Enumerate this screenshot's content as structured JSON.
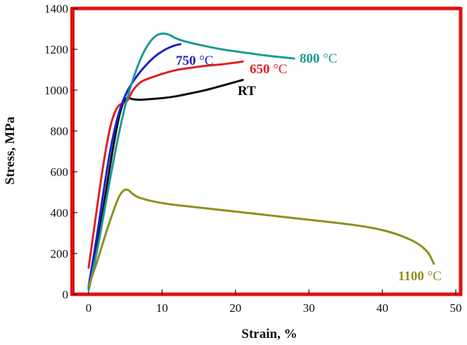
{
  "chart_data": {
    "type": "line",
    "xlabel": "Strain, %",
    "ylabel": "Stress, MPa",
    "xlim": [
      0,
      50
    ],
    "ylim": [
      0,
      1400
    ],
    "xticks": [
      0,
      10,
      20,
      30,
      40,
      50
    ],
    "yticks": [
      0,
      200,
      400,
      600,
      800,
      1000,
      1200,
      1400
    ],
    "grid": false,
    "legend": "inline labels",
    "series": [
      {
        "name": "RT",
        "label_parts": [
          "RT"
        ],
        "color": "#0a0a0a",
        "x": [
          0,
          1,
          2,
          3,
          4,
          4.5,
          5,
          5.5,
          6,
          7,
          8,
          10,
          12,
          14,
          16,
          18,
          20,
          21
        ],
        "y": [
          30,
          200,
          420,
          650,
          850,
          920,
          960,
          962,
          955,
          952,
          955,
          960,
          970,
          985,
          1000,
          1020,
          1040,
          1050
        ]
      },
      {
        "name": "650 °C",
        "label_parts": [
          "650 ",
          "°C"
        ],
        "color": "#e02020",
        "x": [
          0,
          1,
          2,
          3,
          4,
          5,
          5.5,
          6,
          7,
          8,
          10,
          12,
          14,
          16,
          18,
          20,
          21
        ],
        "y": [
          130,
          390,
          640,
          840,
          930,
          935,
          960,
          1000,
          1040,
          1055,
          1080,
          1100,
          1110,
          1120,
          1125,
          1135,
          1140
        ]
      },
      {
        "name": "750 °C",
        "label_parts": [
          "750 ",
          "°C"
        ],
        "color": "#1f1fcc",
        "x": [
          0,
          1,
          2,
          3,
          4,
          5,
          6,
          7,
          8,
          9,
          10,
          11,
          12,
          12.5
        ],
        "y": [
          40,
          250,
          500,
          720,
          880,
          980,
          1040,
          1090,
          1130,
          1165,
          1190,
          1210,
          1222,
          1225
        ]
      },
      {
        "name": "800 °C",
        "label_parts": [
          "800 ",
          "°C"
        ],
        "color": "#1a9a96",
        "x": [
          0,
          1,
          2,
          3,
          4,
          5,
          6,
          7,
          8,
          9,
          10,
          11,
          12,
          14,
          16,
          18,
          20,
          22,
          24,
          26,
          28
        ],
        "y": [
          20,
          180,
          380,
          580,
          770,
          930,
          1050,
          1150,
          1220,
          1265,
          1280,
          1272,
          1250,
          1230,
          1215,
          1200,
          1190,
          1180,
          1170,
          1162,
          1155
        ]
      },
      {
        "name": "1100 °C",
        "label_parts": [
          "1100 ",
          "°C"
        ],
        "color": "#8f8f1e",
        "x": [
          0,
          1,
          2,
          3,
          4,
          4.5,
          5,
          5.5,
          6,
          7,
          10,
          15,
          20,
          25,
          30,
          35,
          38,
          40,
          42,
          44,
          45,
          46,
          46.5,
          47
        ],
        "y": [
          40,
          140,
          260,
          370,
          470,
          500,
          515,
          510,
          490,
          470,
          445,
          425,
          405,
          385,
          365,
          345,
          330,
          315,
          295,
          265,
          245,
          215,
          190,
          150
        ]
      }
    ]
  }
}
